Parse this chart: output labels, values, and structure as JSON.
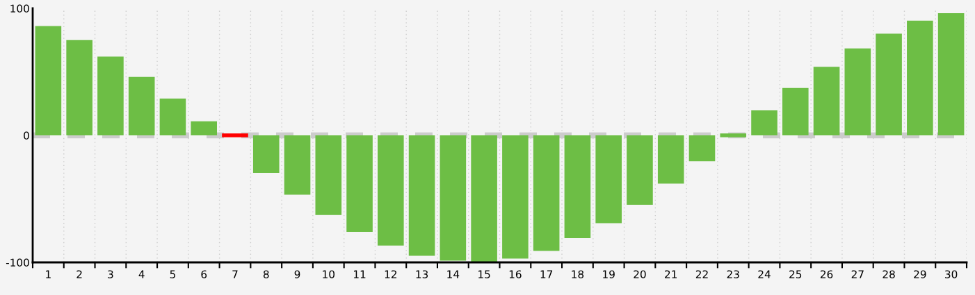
{
  "chart_data": {
    "type": "bar",
    "categories": [
      "1",
      "2",
      "3",
      "4",
      "5",
      "6",
      "7",
      "8",
      "9",
      "10",
      "11",
      "12",
      "13",
      "14",
      "15",
      "16",
      "17",
      "18",
      "19",
      "20",
      "21",
      "22",
      "23",
      "24",
      "25",
      "26",
      "27",
      "28",
      "29",
      "30"
    ],
    "values": [
      86,
      75,
      62,
      46,
      29,
      11,
      0,
      -29.5,
      -46.7,
      -62.7,
      -76,
      -86.8,
      -94.8,
      -98.6,
      -100,
      -97,
      -91,
      -80.9,
      -69.1,
      -54.7,
      -38,
      -20.4,
      0,
      19.7,
      37.3,
      53.9,
      68.4,
      80.1,
      90.3,
      96.2
    ],
    "colors": [
      "#6dbe45",
      "#6dbe45",
      "#6dbe45",
      "#6dbe45",
      "#6dbe45",
      "#6dbe45",
      "#ff0000",
      "#6dbe45",
      "#6dbe45",
      "#6dbe45",
      "#6dbe45",
      "#6dbe45",
      "#6dbe45",
      "#6dbe45",
      "#6dbe45",
      "#6dbe45",
      "#6dbe45",
      "#6dbe45",
      "#6dbe45",
      "#6dbe45",
      "#6dbe45",
      "#6dbe45",
      "#6dbe45",
      "#6dbe45",
      "#6dbe45",
      "#6dbe45",
      "#6dbe45",
      "#6dbe45",
      "#6dbe45",
      "#6dbe45"
    ],
    "ylim": [
      -100,
      100
    ],
    "yticks": [
      -100,
      0,
      100
    ],
    "ref_lines": [
      {
        "axis": "y",
        "value": 0,
        "color": "#cccccc",
        "line_style": "dashed"
      }
    ],
    "grid": "x",
    "legend": false
  }
}
